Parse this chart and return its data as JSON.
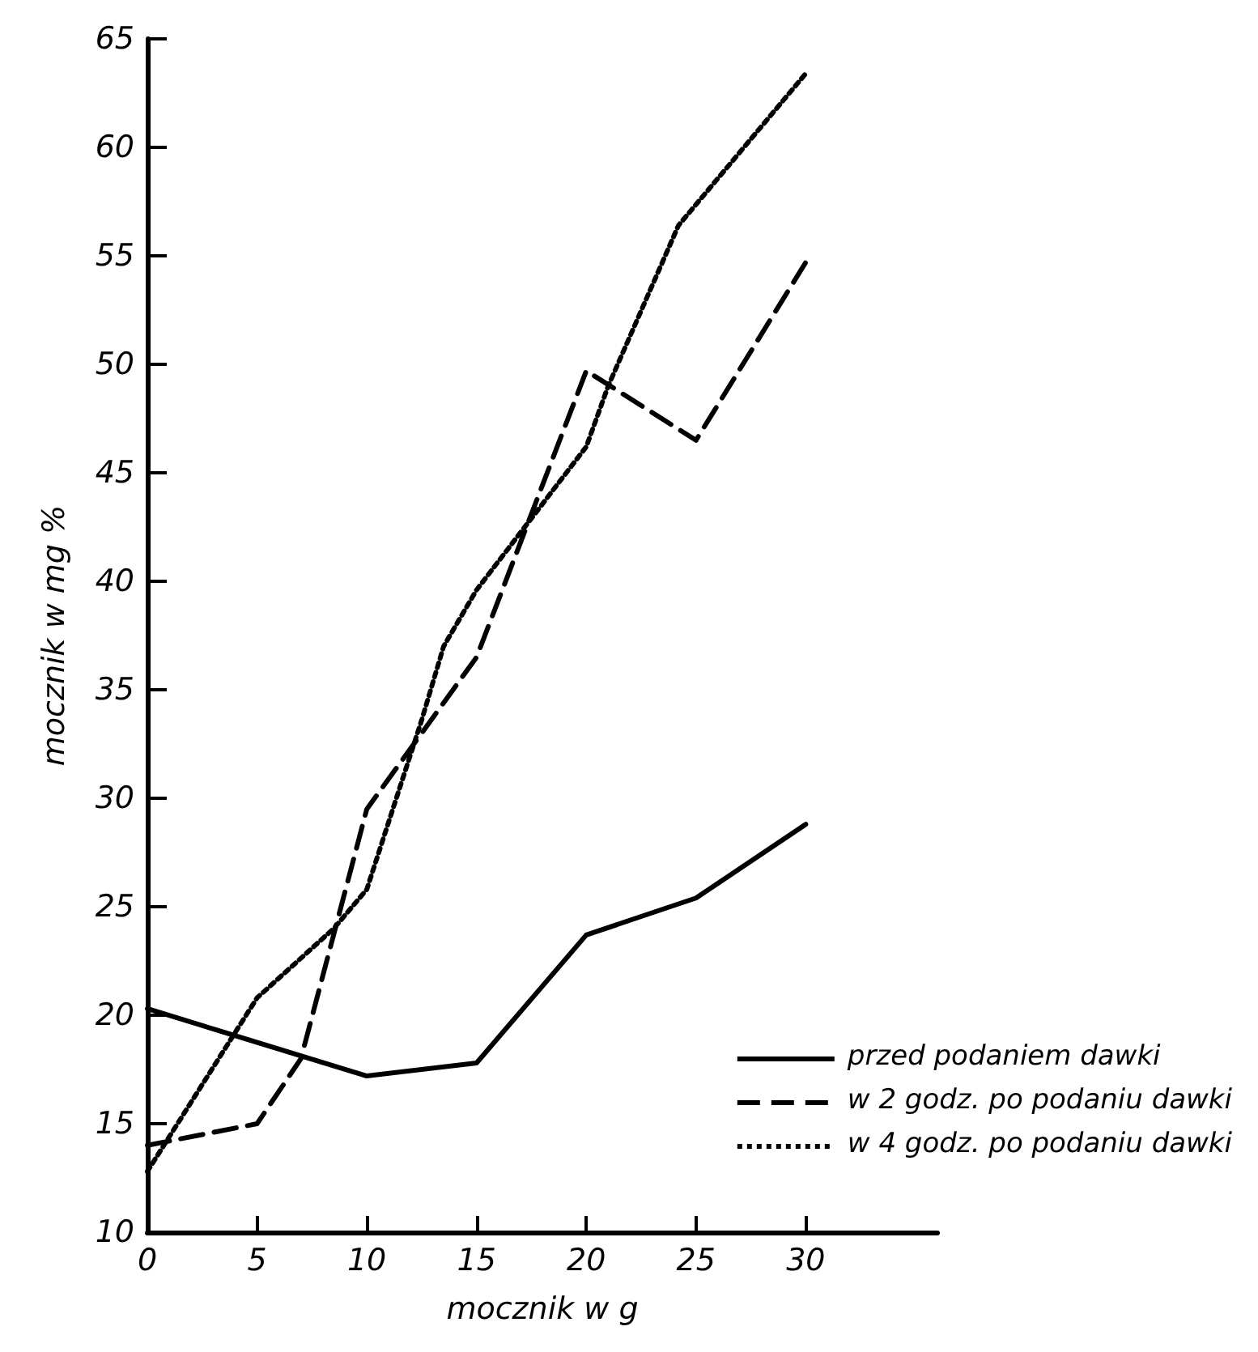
{
  "chart_data": {
    "type": "line",
    "xlabel": "mocznik w g",
    "ylabel": "mocznik w mg %",
    "xlim": [
      0,
      36
    ],
    "xticks": [
      0,
      5,
      10,
      15,
      20,
      25,
      30
    ],
    "ylim": [
      10,
      65
    ],
    "yticks": [
      10,
      15,
      20,
      25,
      30,
      35,
      40,
      45,
      50,
      55,
      60,
      65
    ],
    "grid": false,
    "legend": "bottom right",
    "marker": "none",
    "series": [
      {
        "name": "przed podaniem dawki",
        "color": "#000000",
        "line_style": "solid",
        "x": [
          0,
          10,
          15,
          20,
          25,
          30
        ],
        "values": [
          20.3,
          17.2,
          17.8,
          23.7,
          25.4,
          28.8
        ]
      },
      {
        "name": "w 2 godz. po podaniu dawki",
        "color": "#000000",
        "line_style": "dashed",
        "x": [
          0,
          5,
          7,
          10,
          15,
          20,
          25,
          30
        ],
        "values": [
          14,
          15,
          18,
          29.5,
          36.5,
          49.7,
          46.5,
          54.7
        ]
      },
      {
        "name": "w 4 godz. po podaniu dawki",
        "color": "#000000",
        "line_style": "dotted",
        "x": [
          0,
          5,
          8.5,
          10,
          12.5,
          13.5,
          15,
          20,
          21,
          24.2,
          30
        ],
        "values": [
          12.8,
          20.8,
          24,
          25.8,
          33.6,
          37,
          39.6,
          46.2,
          49,
          56.4,
          63.4
        ]
      }
    ]
  }
}
